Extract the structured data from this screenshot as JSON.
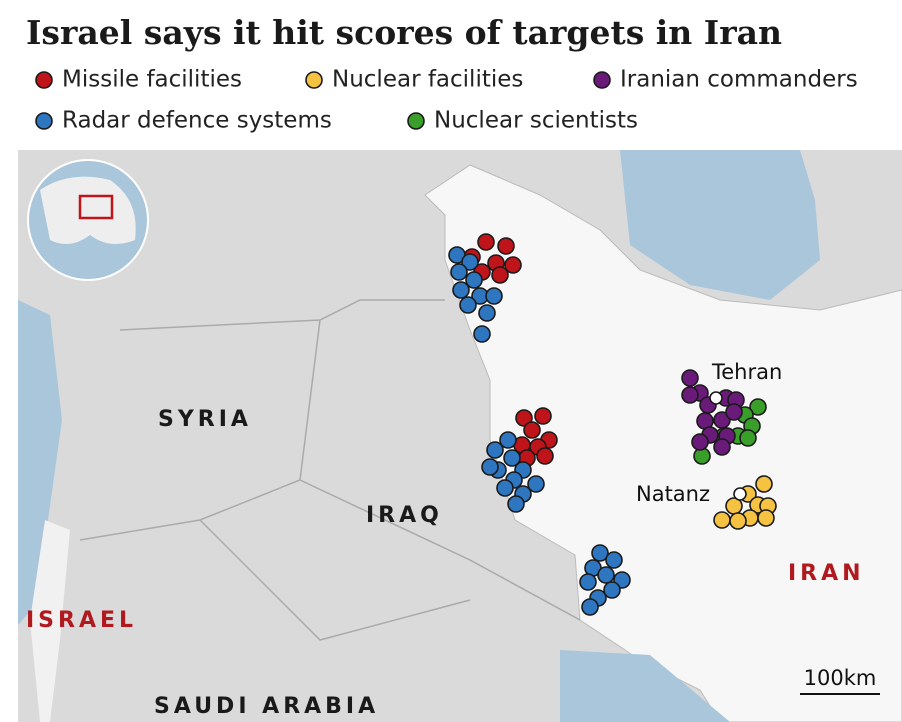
{
  "title": "Israel says it hit scores of targets in Iran",
  "legend": [
    {
      "name": "Missile facilities",
      "color": "#c0141b"
    },
    {
      "name": "Nuclear facilities",
      "color": "#f5c242"
    },
    {
      "name": "Iranian commanders",
      "color": "#6a1b7a"
    },
    {
      "name": "Radar defence systems",
      "color": "#2f76c0"
    },
    {
      "name": "Nuclear scientists",
      "color": "#3a9e2a"
    }
  ],
  "countries": [
    "SYRIA",
    "IRAQ",
    "ISRAEL",
    "IRAN",
    "SAUDI ARABIA"
  ],
  "cities": [
    "Tehran",
    "Natanz"
  ],
  "scale": "100km"
}
